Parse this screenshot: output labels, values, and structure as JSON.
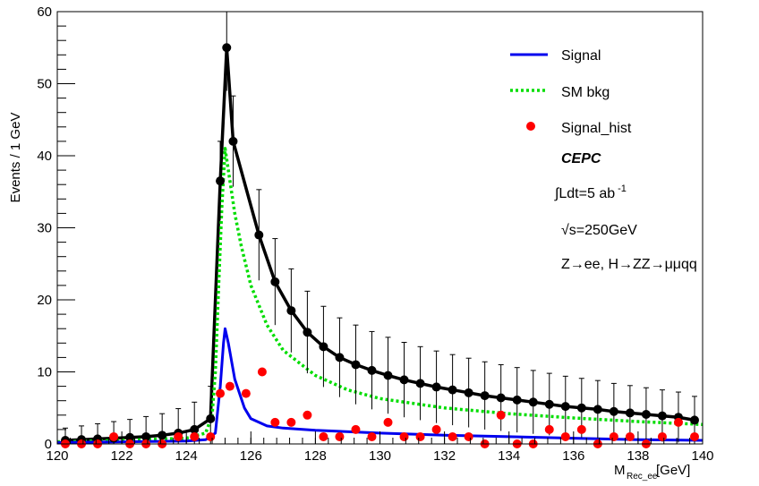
{
  "chart_data": {
    "type": "line",
    "title": "",
    "xlabel": "M",
    "xlabel_sub": "Rec_ee",
    "xlabel_unit": "[GeV]",
    "ylabel": "Events / 1 GeV",
    "xlim": [
      120,
      140
    ],
    "ylim": [
      0,
      60
    ],
    "x_ticks": [
      "120",
      "122",
      "124",
      "126",
      "128",
      "130",
      "132",
      "134",
      "136",
      "138",
      "140"
    ],
    "y_ticks": [
      "0",
      "10",
      "20",
      "30",
      "40",
      "50",
      "60"
    ],
    "grid": false,
    "legend_position": "top-right",
    "legend": {
      "signal": "Signal",
      "bkg": "SM bkg",
      "hist": "Signal_hist"
    },
    "annotations": {
      "experiment": "CEPC",
      "lumi_prefix": "∫Ldt=5 ab",
      "lumi_exp": "-1",
      "energy_root": "√",
      "energy_text": "s=250GeV",
      "process": "Z→ee, H→ZZ→μμqq"
    },
    "colors": {
      "signal": "#0000ee",
      "bkg": "#00dd00",
      "total": "#000000",
      "hist": "#ff0000"
    },
    "signal_curve": {
      "x": [
        120,
        122,
        124,
        124.6,
        124.9,
        125.05,
        125.15,
        125.2,
        125.3,
        125.5,
        125.8,
        126,
        126.5,
        127,
        128,
        130,
        132,
        134,
        136,
        138,
        140
      ],
      "y": [
        0.2,
        0.3,
        0.4,
        0.6,
        1.5,
        8,
        14,
        16,
        14,
        9,
        5,
        3.5,
        2.5,
        2.2,
        1.9,
        1.5,
        1.2,
        1.0,
        0.8,
        0.6,
        0.5
      ]
    },
    "bkg_curve": {
      "x": [
        120,
        122,
        124,
        124.6,
        124.8,
        124.9,
        125,
        125.1,
        125.2,
        125.3,
        125.5,
        125.7,
        126,
        126.5,
        127,
        128,
        129,
        130,
        132,
        134,
        136,
        138,
        140
      ],
      "y": [
        0.3,
        0.5,
        0.8,
        1.5,
        4,
        10,
        22,
        33,
        41,
        38,
        32,
        27.5,
        22,
        16.5,
        13,
        9.5,
        7.5,
        6.3,
        5,
        4.2,
        3.6,
        3.1,
        2.7
      ]
    },
    "total_points": {
      "x": [
        120.25,
        120.75,
        121.25,
        121.75,
        122.25,
        122.75,
        123.25,
        123.75,
        124.25,
        124.75,
        125.05,
        125.25,
        125.45,
        126.25,
        126.75,
        127.25,
        127.75,
        128.25,
        128.75,
        129.25,
        129.75,
        130.25,
        130.75,
        131.25,
        131.75,
        132.25,
        132.75,
        133.25,
        133.75,
        134.25,
        134.75,
        135.25,
        135.75,
        136.25,
        136.75,
        137.25,
        137.75,
        138.25,
        138.75,
        139.25,
        139.75
      ],
      "y": [
        0.5,
        0.6,
        0.7,
        0.8,
        0.9,
        1.0,
        1.2,
        1.5,
        2.0,
        3.5,
        36.5,
        55,
        42,
        29,
        22.5,
        18.5,
        15.5,
        13.5,
        12,
        11,
        10.2,
        9.5,
        8.9,
        8.4,
        7.9,
        7.5,
        7.1,
        6.7,
        6.4,
        6.1,
        5.8,
        5.5,
        5.2,
        5.0,
        4.8,
        4.5,
        4.3,
        4.1,
        3.9,
        3.7,
        3.3
      ]
    },
    "total_errors": [
      1.7,
      1.9,
      2.1,
      2.3,
      2.5,
      2.8,
      3.0,
      3.4,
      3.8,
      4.5,
      5.5,
      6.0,
      6.3,
      6.3,
      6.0,
      5.8,
      5.7,
      5.6,
      5.5,
      5.5,
      5.4,
      5.3,
      5.2,
      5.1,
      5.0,
      4.9,
      4.8,
      4.7,
      4.6,
      4.5,
      4.4,
      4.3,
      4.2,
      4.1,
      4.0,
      3.9,
      3.8,
      3.7,
      3.6,
      3.5,
      3.3
    ],
    "hist_points": {
      "x": [
        120.25,
        120.75,
        121.25,
        121.75,
        122.25,
        122.75,
        123.25,
        123.75,
        124.25,
        124.75,
        125.05,
        125.35,
        125.85,
        126.35,
        126.75,
        127.25,
        127.75,
        128.25,
        128.75,
        129.25,
        129.75,
        130.25,
        130.75,
        131.25,
        131.75,
        132.25,
        132.75,
        133.25,
        133.75,
        134.25,
        134.75,
        135.25,
        135.75,
        136.25,
        136.75,
        137.25,
        137.75,
        138.25,
        138.75,
        139.25,
        139.75
      ],
      "y": [
        0,
        0,
        0,
        1,
        0,
        0,
        0,
        1,
        1,
        1,
        7,
        8,
        7,
        10,
        3,
        3,
        4,
        1,
        1,
        2,
        1,
        3,
        1,
        1,
        2,
        1,
        1,
        0,
        4,
        0,
        0,
        2,
        1,
        2,
        0,
        1,
        1,
        0,
        1,
        3,
        1
      ]
    }
  }
}
